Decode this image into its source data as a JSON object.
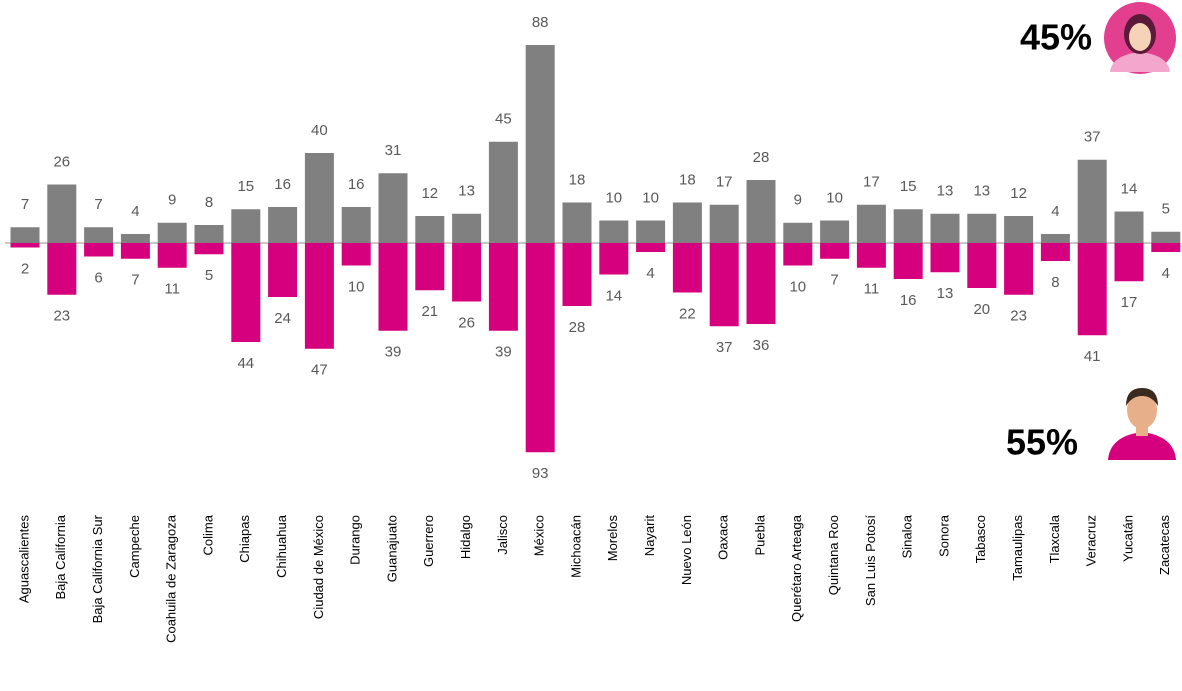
{
  "chart_data": {
    "type": "diverging-bar",
    "categories": [
      "Aguascalientes",
      "Baja California",
      "Baja California Sur",
      "Campeche",
      "Coahuila de Zaragoza",
      "Colima",
      "Chiapas",
      "Chihuahua",
      "Ciudad de México",
      "Durango",
      "Guanajuato",
      "Guerrero",
      "Hidalgo",
      "Jalisco",
      "México",
      "Michoacán",
      "Morelos",
      "Nayarit",
      "Nuevo León",
      "Oaxaca",
      "Puebla",
      "Querétaro Arteaga",
      "Quintana Roo",
      "San Luis Potosí",
      "Sinaloa",
      "Sonora",
      "Tabasco",
      "Tamaulipas",
      "Tlaxcala",
      "Veracruz",
      "Yucatán",
      "Zacatecas"
    ],
    "series": [
      {
        "color": "#808080",
        "direction": "up",
        "values": [
          7,
          26,
          7,
          4,
          9,
          8,
          15,
          16,
          40,
          16,
          31,
          12,
          13,
          45,
          88,
          18,
          10,
          10,
          18,
          17,
          28,
          9,
          10,
          17,
          15,
          13,
          13,
          12,
          4,
          37,
          14,
          5
        ]
      },
      {
        "color": "#d6007e",
        "direction": "down",
        "values": [
          2,
          23,
          6,
          7,
          11,
          5,
          44,
          24,
          47,
          10,
          39,
          21,
          26,
          39,
          93,
          28,
          14,
          4,
          22,
          37,
          36,
          10,
          7,
          11,
          16,
          13,
          20,
          23,
          8,
          41,
          17,
          4
        ]
      }
    ],
    "ylim": [
      0,
      100
    ],
    "annotations": [
      "45%",
      "55%"
    ]
  }
}
